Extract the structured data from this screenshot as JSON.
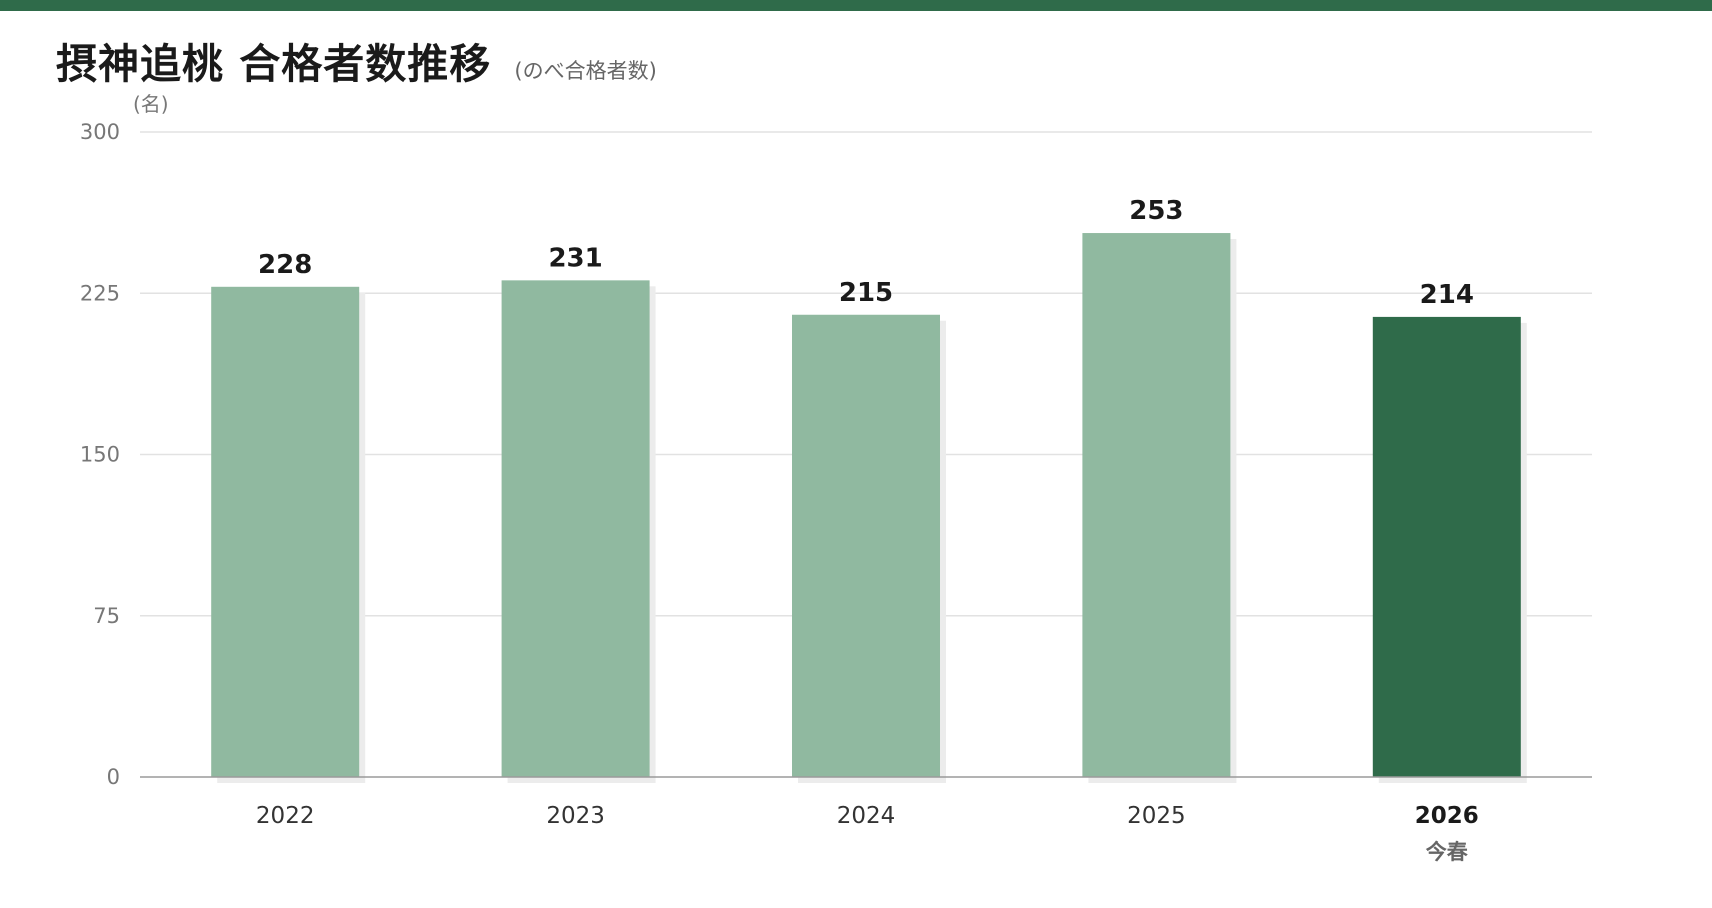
{
  "title": "摂神追桃 合格者数推移",
  "subtitle": "(のべ合格者数)",
  "colors": {
    "top_bar": "#2f6b4a",
    "bar_past": "#90b9a0",
    "bar_current": "#2f6b4a",
    "bar_shadow": "#ececec",
    "grid": "#e2e2e2",
    "axis": "#9a9a9a",
    "tick_text": "#777777",
    "category_text": "#333333",
    "value_text": "#1a1a1a",
    "current_sub_text": "#666666"
  },
  "chart_data": {
    "type": "bar",
    "title": "摂神追桃 合格者数推移",
    "subtitle": "(のべ合格者数)",
    "ylabel": "(名)",
    "ylim": [
      0,
      300
    ],
    "yticks": [
      0,
      75,
      150,
      225,
      300
    ],
    "grid": true,
    "categories": [
      "2022",
      "2023",
      "2024",
      "2025",
      "2026"
    ],
    "category_sublabels": [
      "",
      "",
      "",
      "",
      "今春"
    ],
    "highlight_index": 4,
    "values": [
      228,
      231,
      215,
      253,
      214
    ]
  }
}
